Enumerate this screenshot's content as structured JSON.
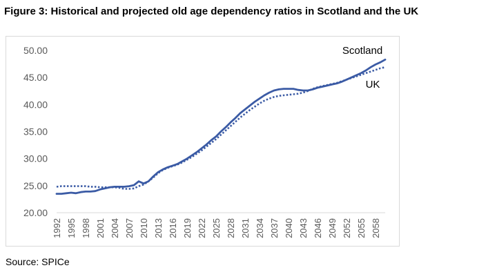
{
  "figure": {
    "title": "Figure 3: Historical and projected old age dependency ratios in Scotland and the UK",
    "source": "Source: SPICe"
  },
  "colors": {
    "line": "#3b5ba5",
    "axis": "#d9d9d9",
    "text": "#595959"
  },
  "chart_data": {
    "type": "line",
    "title": "",
    "xlabel": "",
    "ylabel": "",
    "ylim": [
      20,
      50
    ],
    "y_ticks": [
      "20.00",
      "25.00",
      "30.00",
      "35.00",
      "40.00",
      "45.00",
      "50.00"
    ],
    "x_range": [
      1992,
      2060
    ],
    "x_ticks": [
      "1992",
      "1995",
      "1998",
      "2001",
      "2004",
      "2007",
      "2010",
      "2013",
      "2016",
      "2019",
      "2022",
      "2025",
      "2028",
      "2031",
      "2034",
      "2037",
      "2040",
      "2043",
      "2046",
      "2049",
      "2052",
      "2055",
      "2058"
    ],
    "grid": false,
    "series": [
      {
        "name": "Scotland",
        "style": "solid",
        "points": [
          [
            1992,
            23.5
          ],
          [
            1993,
            23.5
          ],
          [
            1994,
            23.6
          ],
          [
            1995,
            23.7
          ],
          [
            1996,
            23.6
          ],
          [
            1997,
            23.8
          ],
          [
            1998,
            23.9
          ],
          [
            1999,
            23.9
          ],
          [
            2000,
            24.0
          ],
          [
            2001,
            24.3
          ],
          [
            2002,
            24.5
          ],
          [
            2003,
            24.7
          ],
          [
            2004,
            24.8
          ],
          [
            2005,
            24.8
          ],
          [
            2006,
            24.8
          ],
          [
            2007,
            24.9
          ],
          [
            2008,
            25.1
          ],
          [
            2009,
            25.8
          ],
          [
            2010,
            25.4
          ],
          [
            2011,
            25.8
          ],
          [
            2012,
            26.7
          ],
          [
            2013,
            27.5
          ],
          [
            2014,
            28.0
          ],
          [
            2015,
            28.4
          ],
          [
            2016,
            28.7
          ],
          [
            2017,
            29.0
          ],
          [
            2018,
            29.5
          ],
          [
            2019,
            30.0
          ],
          [
            2020,
            30.6
          ],
          [
            2021,
            31.2
          ],
          [
            2022,
            31.9
          ],
          [
            2023,
            32.6
          ],
          [
            2024,
            33.4
          ],
          [
            2025,
            34.1
          ],
          [
            2026,
            35.0
          ],
          [
            2027,
            35.8
          ],
          [
            2028,
            36.7
          ],
          [
            2029,
            37.5
          ],
          [
            2030,
            38.4
          ],
          [
            2031,
            39.1
          ],
          [
            2032,
            39.8
          ],
          [
            2033,
            40.5
          ],
          [
            2034,
            41.1
          ],
          [
            2035,
            41.7
          ],
          [
            2036,
            42.2
          ],
          [
            2037,
            42.6
          ],
          [
            2038,
            42.8
          ],
          [
            2039,
            42.9
          ],
          [
            2040,
            42.9
          ],
          [
            2041,
            42.9
          ],
          [
            2042,
            42.7
          ],
          [
            2043,
            42.6
          ],
          [
            2044,
            42.6
          ],
          [
            2045,
            42.8
          ],
          [
            2046,
            43.1
          ],
          [
            2047,
            43.3
          ],
          [
            2048,
            43.5
          ],
          [
            2049,
            43.7
          ],
          [
            2050,
            43.9
          ],
          [
            2051,
            44.2
          ],
          [
            2052,
            44.6
          ],
          [
            2053,
            45.0
          ],
          [
            2054,
            45.4
          ],
          [
            2055,
            45.8
          ],
          [
            2056,
            46.3
          ],
          [
            2057,
            46.9
          ],
          [
            2058,
            47.4
          ],
          [
            2059,
            47.8
          ],
          [
            2060,
            48.3
          ]
        ]
      },
      {
        "name": "UK",
        "style": "dotted",
        "points": [
          [
            1992,
            24.8
          ],
          [
            1993,
            24.9
          ],
          [
            1994,
            24.9
          ],
          [
            1995,
            24.9
          ],
          [
            1996,
            24.9
          ],
          [
            1997,
            24.9
          ],
          [
            1998,
            24.9
          ],
          [
            1999,
            24.8
          ],
          [
            2000,
            24.8
          ],
          [
            2001,
            24.7
          ],
          [
            2002,
            24.7
          ],
          [
            2003,
            24.7
          ],
          [
            2004,
            24.7
          ],
          [
            2005,
            24.6
          ],
          [
            2006,
            24.4
          ],
          [
            2007,
            24.4
          ],
          [
            2008,
            24.5
          ],
          [
            2009,
            24.9
          ],
          [
            2010,
            25.2
          ],
          [
            2011,
            25.8
          ],
          [
            2012,
            26.5
          ],
          [
            2013,
            27.3
          ],
          [
            2014,
            27.9
          ],
          [
            2015,
            28.3
          ],
          [
            2016,
            28.6
          ],
          [
            2017,
            28.9
          ],
          [
            2018,
            29.3
          ],
          [
            2019,
            29.8
          ],
          [
            2020,
            30.3
          ],
          [
            2021,
            30.9
          ],
          [
            2022,
            31.5
          ],
          [
            2023,
            32.2
          ],
          [
            2024,
            32.9
          ],
          [
            2025,
            33.6
          ],
          [
            2026,
            34.4
          ],
          [
            2027,
            35.2
          ],
          [
            2028,
            36.0
          ],
          [
            2029,
            36.8
          ],
          [
            2030,
            37.6
          ],
          [
            2031,
            38.3
          ],
          [
            2032,
            39.0
          ],
          [
            2033,
            39.6
          ],
          [
            2034,
            40.2
          ],
          [
            2035,
            40.7
          ],
          [
            2036,
            41.1
          ],
          [
            2037,
            41.4
          ],
          [
            2038,
            41.6
          ],
          [
            2039,
            41.7
          ],
          [
            2040,
            41.8
          ],
          [
            2041,
            41.9
          ],
          [
            2042,
            42.0
          ],
          [
            2043,
            42.2
          ],
          [
            2044,
            42.5
          ],
          [
            2045,
            42.9
          ],
          [
            2046,
            43.2
          ],
          [
            2047,
            43.4
          ],
          [
            2048,
            43.6
          ],
          [
            2049,
            43.8
          ],
          [
            2050,
            44.0
          ],
          [
            2051,
            44.3
          ],
          [
            2052,
            44.6
          ],
          [
            2053,
            44.9
          ],
          [
            2054,
            45.2
          ],
          [
            2055,
            45.5
          ],
          [
            2056,
            45.8
          ],
          [
            2057,
            46.1
          ],
          [
            2058,
            46.4
          ],
          [
            2059,
            46.7
          ],
          [
            2060,
            46.9
          ]
        ]
      }
    ]
  }
}
